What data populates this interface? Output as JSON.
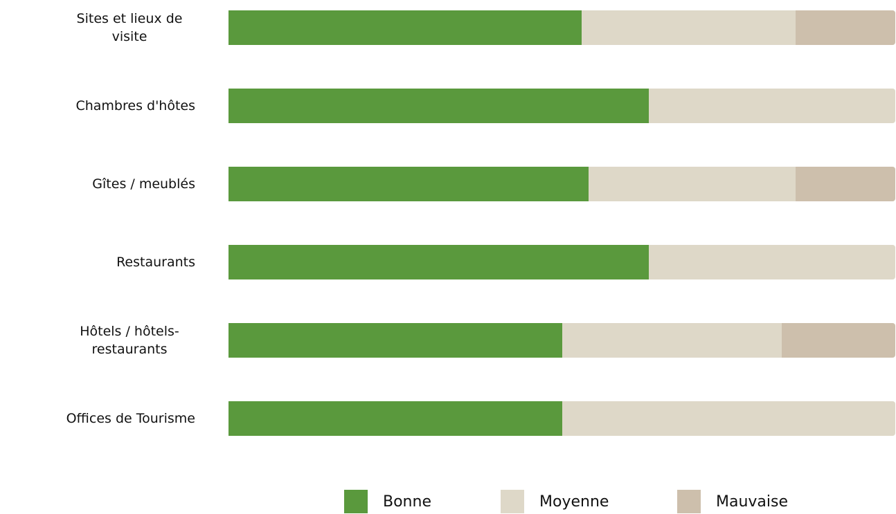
{
  "chart_data": {
    "type": "stacked-bar-horizontal",
    "categories": [
      "Sites et lieux de visite",
      "Chambres d'hôtes",
      "Gîtes / meublés",
      "Restaurants",
      "Hôtels / hôtels-restaurants",
      "Offices de Tourisme"
    ],
    "series": [
      {
        "name": "Bonne",
        "color": "#5a993d",
        "values": [
          53,
          63,
          54,
          63,
          50,
          50
        ]
      },
      {
        "name": "Moyenne",
        "color": "#ded8c8",
        "values": [
          32,
          37,
          31,
          37,
          33,
          50
        ]
      },
      {
        "name": "Mauvaise",
        "color": "#cdbfac",
        "values": [
          15,
          0,
          15,
          0,
          17,
          0
        ]
      }
    ],
    "legend": "bottom"
  }
}
